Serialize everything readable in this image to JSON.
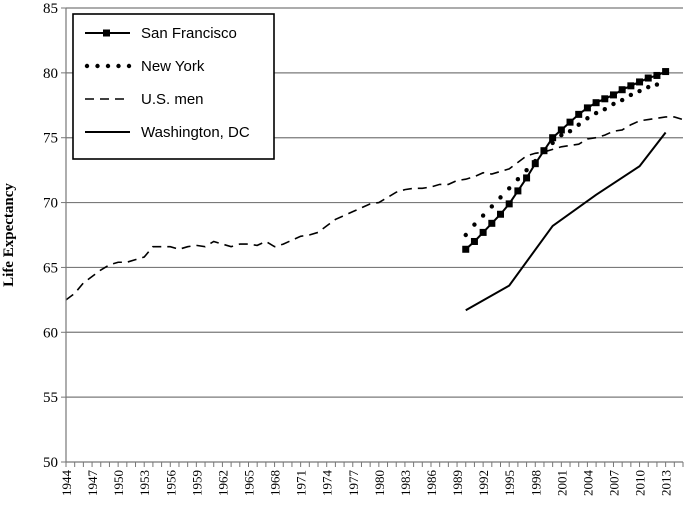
{
  "chart_data": {
    "type": "line",
    "title": "",
    "xlabel": "",
    "ylabel": "Life Expectancy",
    "ylim": [
      50,
      85
    ],
    "xlim": [
      1944,
      2015
    ],
    "grid": "horizontal",
    "legend_position": "top-left",
    "y_ticks": [
      "50",
      "55",
      "60",
      "65",
      "70",
      "75",
      "80",
      "85"
    ],
    "x_ticks": [
      "1944",
      "1947",
      "1950",
      "1953",
      "1956",
      "1959",
      "1962",
      "1965",
      "1968",
      "1971",
      "1974",
      "1977",
      "1980",
      "1983",
      "1986",
      "1989",
      "1992",
      "1995",
      "1998",
      "2001",
      "2004",
      "2007",
      "2010",
      "2013"
    ],
    "series": [
      {
        "name": "San Francisco",
        "style": "solid-square",
        "color": "#000000",
        "x": [
          1990,
          1991,
          1992,
          1993,
          1994,
          1995,
          1996,
          1997,
          1998,
          1999,
          2000,
          2001,
          2002,
          2003,
          2004,
          2005,
          2006,
          2007,
          2008,
          2009,
          2010,
          2011,
          2012,
          2013
        ],
        "y": [
          66.4,
          67.0,
          67.7,
          68.4,
          69.1,
          69.9,
          70.9,
          71.9,
          73.0,
          74.0,
          75.0,
          75.6,
          76.2,
          76.8,
          77.3,
          77.7,
          78.0,
          78.3,
          78.7,
          79.0,
          79.3,
          79.6,
          79.8,
          80.1
        ]
      },
      {
        "name": "New York",
        "style": "dotted",
        "color": "#000000",
        "x": [
          1990,
          1991,
          1992,
          1993,
          1994,
          1995,
          1996,
          1997,
          1998,
          1999,
          2000,
          2001,
          2002,
          2003,
          2004,
          2005,
          2006,
          2007,
          2008,
          2009,
          2010,
          2011,
          2012
        ],
        "y": [
          67.5,
          68.3,
          69.0,
          69.7,
          70.4,
          71.1,
          71.8,
          72.5,
          73.2,
          73.9,
          74.6,
          75.2,
          75.5,
          76.0,
          76.5,
          76.9,
          77.2,
          77.6,
          77.9,
          78.3,
          78.6,
          78.9,
          79.1
        ]
      },
      {
        "name": "U.S. men",
        "style": "dashed",
        "color": "#000000",
        "x": [
          1944,
          1945,
          1946,
          1947,
          1948,
          1949,
          1950,
          1951,
          1952,
          1953,
          1954,
          1955,
          1956,
          1957,
          1958,
          1959,
          1960,
          1961,
          1962,
          1963,
          1964,
          1965,
          1966,
          1967,
          1968,
          1969,
          1970,
          1971,
          1972,
          1973,
          1974,
          1975,
          1976,
          1977,
          1978,
          1979,
          1980,
          1981,
          1982,
          1983,
          1984,
          1985,
          1986,
          1987,
          1988,
          1989,
          1990,
          1991,
          1992,
          1993,
          1994,
          1995,
          1996,
          1997,
          1998,
          1999,
          2000,
          2001,
          2002,
          2003,
          2004,
          2005,
          2006,
          2007,
          2008,
          2009,
          2010,
          2011,
          2012,
          2013,
          2014,
          2015
        ],
        "y": [
          62.5,
          63.0,
          63.8,
          64.3,
          64.8,
          65.2,
          65.4,
          65.4,
          65.6,
          65.8,
          66.6,
          66.6,
          66.6,
          66.4,
          66.6,
          66.7,
          66.6,
          67.0,
          66.8,
          66.6,
          66.8,
          66.8,
          66.7,
          67.0,
          66.6,
          66.8,
          67.1,
          67.4,
          67.5,
          67.7,
          68.2,
          68.7,
          69.0,
          69.3,
          69.6,
          69.9,
          70.0,
          70.4,
          70.8,
          71.0,
          71.1,
          71.1,
          71.2,
          71.4,
          71.4,
          71.7,
          71.8,
          72.0,
          72.3,
          72.2,
          72.4,
          72.6,
          73.1,
          73.6,
          73.8,
          73.9,
          74.1,
          74.3,
          74.4,
          74.5,
          74.9,
          75.0,
          75.2,
          75.5,
          75.6,
          76.0,
          76.3,
          76.4,
          76.5,
          76.6,
          76.6,
          76.4
        ]
      },
      {
        "name": "Washington, DC",
        "style": "solid",
        "color": "#000000",
        "x": [
          1990,
          1995,
          2000,
          2005,
          2010,
          2013
        ],
        "y": [
          61.7,
          63.6,
          68.2,
          70.6,
          72.8,
          75.4
        ]
      }
    ]
  }
}
